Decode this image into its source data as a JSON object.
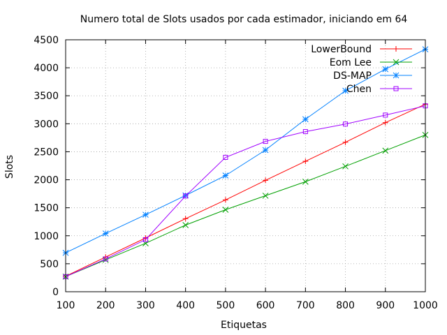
{
  "chart_data": {
    "type": "line",
    "title": "Numero total de Slots usados por cada estimador, iniciando em 64",
    "xlabel": "Etiquetas",
    "ylabel": "Slots",
    "xlim": [
      100,
      1000
    ],
    "ylim": [
      0,
      4500
    ],
    "x_ticks": [
      100,
      200,
      300,
      400,
      500,
      600,
      700,
      800,
      900,
      1000
    ],
    "y_ticks": [
      0,
      500,
      1000,
      1500,
      2000,
      2500,
      3000,
      3500,
      4000,
      4500
    ],
    "grid": true,
    "legend_position": "top-right",
    "x": [
      100,
      200,
      300,
      400,
      500,
      600,
      700,
      800,
      900,
      1000
    ],
    "series": [
      {
        "name": "LowerBound",
        "color": "#ff0000",
        "marker": "plus",
        "values": [
          277,
          620,
          960,
          1305,
          1640,
          1990,
          2330,
          2670,
          3020,
          3350
        ]
      },
      {
        "name": "Eom Lee",
        "color": "#00a000",
        "marker": "cross",
        "values": [
          270,
          570,
          865,
          1190,
          1465,
          1715,
          1965,
          2240,
          2520,
          2800
        ]
      },
      {
        "name": "DS-MAP",
        "color": "#0080ff",
        "marker": "star",
        "values": [
          695,
          1040,
          1375,
          1720,
          2075,
          2530,
          3080,
          3590,
          3975,
          4330
        ]
      },
      {
        "name": "Chen",
        "color": "#a000ff",
        "marker": "box",
        "values": [
          270,
          585,
          930,
          1710,
          2400,
          2685,
          2860,
          2995,
          3155,
          3320
        ]
      }
    ]
  }
}
